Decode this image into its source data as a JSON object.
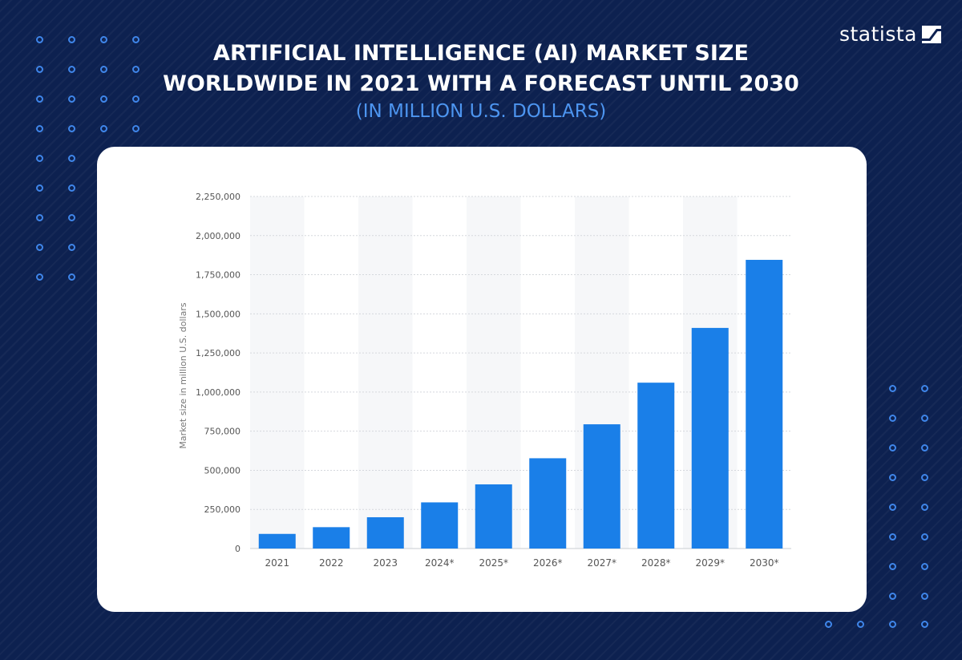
{
  "header": {
    "title_line1": "ARTIFICIAL INTELLIGENCE (AI) MARKET SIZE",
    "title_line2": "WORLDWIDE IN 2021 WITH A FORECAST UNTIL 2030",
    "subtitle": "(IN MILLION U.S. DOLLARS)",
    "logo_text": "statista",
    "logo_icon": "statista-logo-icon"
  },
  "colors": {
    "background": "#0d2150",
    "bar": "#1a7fe8",
    "accent": "#4d95f0",
    "card": "#ffffff"
  },
  "chart_data": {
    "type": "bar",
    "categories": [
      "2021",
      "2022",
      "2023",
      "2024*",
      "2025*",
      "2026*",
      "2027*",
      "2028*",
      "2029*",
      "2030*"
    ],
    "values": [
      93530,
      136550,
      200000,
      295000,
      410000,
      577000,
      794000,
      1060000,
      1410000,
      1845000
    ],
    "ylabel": "Market size in million U.S. dollars",
    "ylim": [
      0,
      2250000
    ],
    "yticks": [
      0,
      250000,
      500000,
      750000,
      1000000,
      1250000,
      1500000,
      1750000,
      2000000,
      2250000
    ],
    "ytick_labels": [
      "0",
      "250,000",
      "500,000",
      "750,000",
      "1,000,000",
      "1,250,000",
      "1,500,000",
      "1,750,000",
      "2,000,000",
      "2,250,000"
    ],
    "grid": true,
    "legend": "none"
  }
}
